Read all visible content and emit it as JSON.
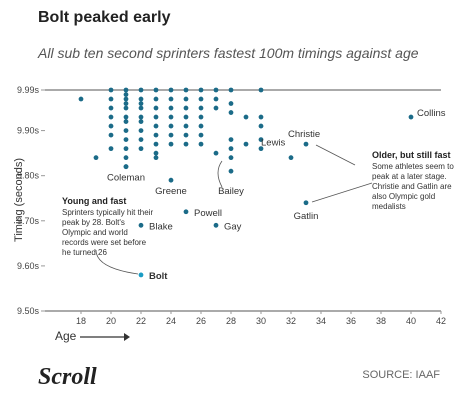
{
  "chart_data": {
    "type": "scatter",
    "title": "Bolt peaked early",
    "subtitle": "All sub ten second sprinters fastest 100m timings against age",
    "ylabel": "Timing (seconds)",
    "xlabel": "Age",
    "color": "#1b6b88",
    "xlim": [
      16,
      42
    ],
    "xticks": [
      18,
      20,
      22,
      24,
      26,
      28,
      30,
      32,
      34,
      36,
      38,
      40,
      42
    ],
    "ylim": [
      9.5,
      9.99
    ],
    "yticks": [
      {
        "value": 9.99,
        "label": "9.99s"
      },
      {
        "value": 9.9,
        "label": "9.90s"
      },
      {
        "value": 9.8,
        "label": "9.80s"
      },
      {
        "value": 9.7,
        "label": "9.70s"
      },
      {
        "value": 9.6,
        "label": "9.60s"
      },
      {
        "value": 9.5,
        "label": "9.50s"
      }
    ],
    "x": [
      18,
      19,
      20,
      20,
      20,
      20,
      20,
      20,
      20,
      21,
      21,
      21,
      21,
      21,
      21,
      21,
      21,
      21,
      21,
      21,
      21,
      22,
      22,
      22,
      22,
      22,
      22,
      22,
      22,
      22,
      23,
      23,
      23,
      23,
      23,
      23,
      23,
      23,
      23,
      24,
      24,
      24,
      24,
      24,
      24,
      24,
      25,
      25,
      25,
      25,
      25,
      25,
      25,
      26,
      26,
      26,
      26,
      26,
      26,
      26,
      27,
      27,
      27,
      27,
      28,
      28,
      28,
      28,
      28,
      28,
      29,
      29,
      30,
      30,
      30,
      30,
      32
    ],
    "y": [
      9.97,
      9.84,
      9.99,
      9.97,
      9.95,
      9.93,
      9.91,
      9.89,
      9.86,
      9.99,
      9.98,
      9.97,
      9.96,
      9.95,
      9.93,
      9.92,
      9.9,
      9.88,
      9.86,
      9.84,
      9.82,
      9.99,
      9.97,
      9.96,
      9.95,
      9.93,
      9.92,
      9.9,
      9.88,
      9.86,
      9.99,
      9.97,
      9.95,
      9.93,
      9.91,
      9.89,
      9.87,
      9.85,
      9.84,
      9.99,
      9.97,
      9.95,
      9.93,
      9.91,
      9.89,
      9.87,
      9.99,
      9.97,
      9.95,
      9.93,
      9.91,
      9.89,
      9.87,
      9.99,
      9.97,
      9.95,
      9.93,
      9.91,
      9.89,
      9.87,
      9.99,
      9.97,
      9.95,
      9.85,
      9.99,
      9.96,
      9.94,
      9.88,
      9.86,
      9.84,
      9.93,
      9.87,
      9.99,
      9.93,
      9.91,
      9.88,
      9.84
    ],
    "labeled_points": [
      {
        "label": "Coleman",
        "x": 21,
        "y": 9.82
      },
      {
        "label": "Greene",
        "x": 24,
        "y": 9.79
      },
      {
        "label": "Bailey",
        "x": 28,
        "y": 9.81
      },
      {
        "label": "Lewis",
        "x": 30,
        "y": 9.86
      },
      {
        "label": "Christie",
        "x": 33,
        "y": 9.87
      },
      {
        "label": "Collins",
        "x": 40,
        "y": 9.93
      },
      {
        "label": "Powell",
        "x": 25,
        "y": 9.72
      },
      {
        "label": "Blake",
        "x": 22,
        "y": 9.69
      },
      {
        "label": "Gay",
        "x": 27,
        "y": 9.69
      },
      {
        "label": "Gatlin",
        "x": 33,
        "y": 9.74
      },
      {
        "label": "Bolt",
        "x": 22,
        "y": 9.58
      }
    ],
    "annotations": [
      {
        "title": "Young and fast",
        "text": "Sprinters typically hit their peak by 28. Bolt's Olympic and world records were set before he turned 26"
      },
      {
        "title": "Older, but still fast",
        "text": "Some athletes seem to peak at a later stage. Christie and Gatlin are also Olympic gold medalists"
      }
    ],
    "logo": "Scroll",
    "source": "SOURCE: IAAF"
  }
}
